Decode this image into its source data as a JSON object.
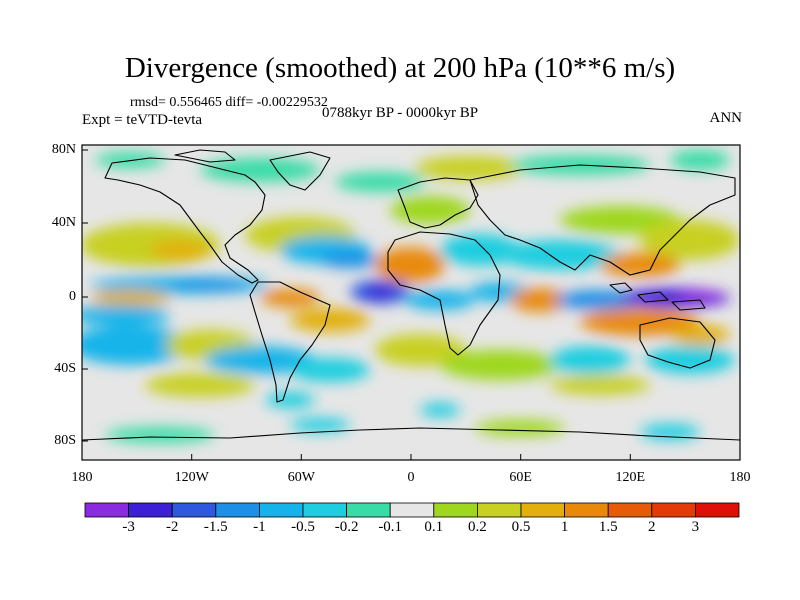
{
  "title": "Divergence (smoothed) at 200 hPa (10**6 m/s)",
  "stats": "rmsd= 0.556465 diff= -0.00229532",
  "experiment": "Expt = teVTD-tevta",
  "period": "0788kyr BP - 0000kyr BP",
  "season": "ANN",
  "axes": {
    "x_ticks": [
      "180",
      "120W",
      "60W",
      "0",
      "60E",
      "120E",
      "180"
    ],
    "y_ticks": [
      "80N",
      "40N",
      "0",
      "40S",
      "80S"
    ]
  },
  "colorbar": {
    "labels": [
      "-3",
      "-2",
      "-1.5",
      "-1",
      "-0.5",
      "-0.2",
      "-0.1",
      "0.1",
      "0.2",
      "0.5",
      "1",
      "1.5",
      "2",
      "3"
    ],
    "colors": [
      "#8a2be2",
      "#3c1fd6",
      "#2e58e0",
      "#1e8fe6",
      "#14b4ea",
      "#1ccee0",
      "#38dca6",
      "#e6e6e6",
      "#9ed71e",
      "#c8d020",
      "#e2b00c",
      "#e88a08",
      "#e65a08",
      "#e43a0a",
      "#e01008"
    ]
  }
}
